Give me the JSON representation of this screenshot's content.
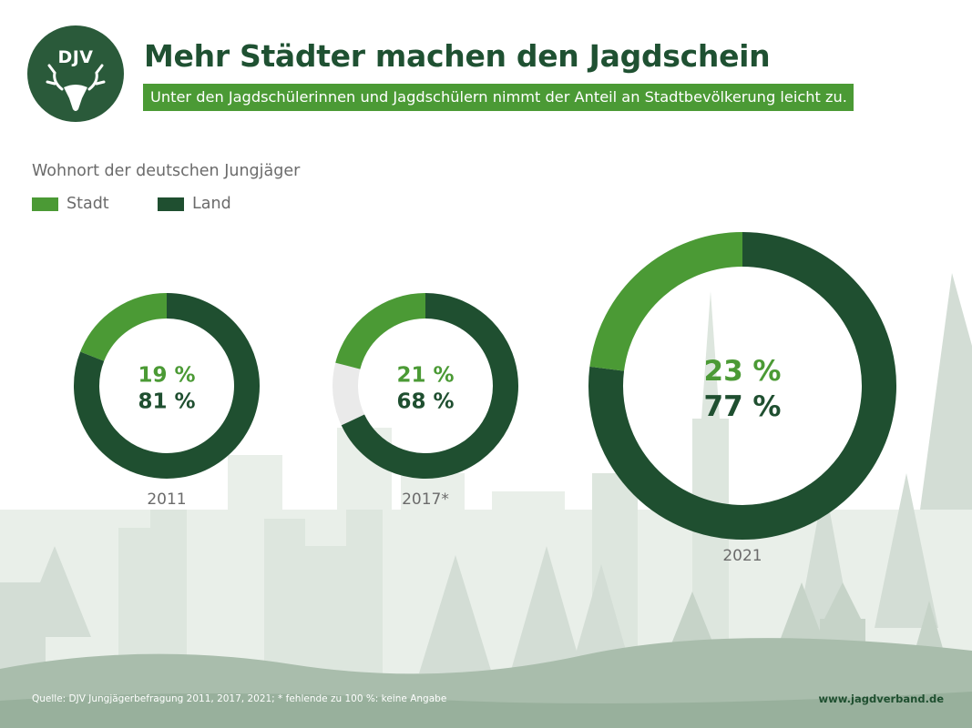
{
  "header": {
    "logo_text": "DJV",
    "title": "Mehr Städter machen den Jagdschein",
    "subtitle": "Unter den Jagdschülerinnen und Jagdschülern nimmt der Anteil an Stadtbevölkerung leicht zu."
  },
  "colors": {
    "stadt": "#4b9a35",
    "land": "#1f4f30",
    "missing": "#eaeaea",
    "brand": "#2a5a3a"
  },
  "legend": [
    {
      "label": "Stadt",
      "color_key": "stadt"
    },
    {
      "label": "Land",
      "color_key": "land"
    }
  ],
  "chart_data": {
    "type": "pie",
    "subtype": "donut",
    "title": "Wohnort der deutschen Jungjäger",
    "categories": [
      "Stadt",
      "Land"
    ],
    "charts": [
      {
        "year": "2011",
        "year_label": "2011",
        "stadt": 19,
        "land": 81,
        "stadt_label": "19 %",
        "land_label": "81 %"
      },
      {
        "year": "2017",
        "year_label": "2017*",
        "stadt": 21,
        "land": 68,
        "stadt_label": "21 %",
        "land_label": "68 %"
      },
      {
        "year": "2021",
        "year_label": "2021",
        "stadt": 23,
        "land": 77,
        "stadt_label": "23 %",
        "land_label": "77 %"
      }
    ]
  },
  "footer": {
    "source": "Quelle: DJV Jungjägerbefragung 2011, 2017, 2021; * fehlende zu 100 %: keine Angabe",
    "url": "www.jagdverband.de"
  }
}
